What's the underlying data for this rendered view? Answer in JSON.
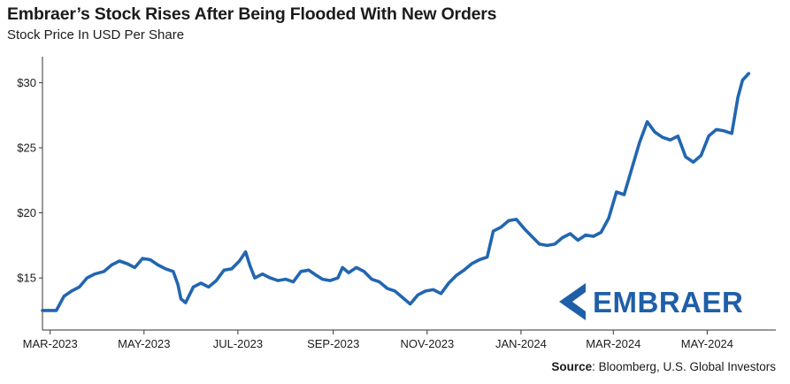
{
  "header": {
    "title": "Embraer’s Stock Rises After Being Flooded With New Orders",
    "subtitle": "Stock Price In USD Per Share"
  },
  "footer": {
    "source_label": "Source",
    "source_text": ": Bloomberg, U.S. Global Investors"
  },
  "logo": {
    "text": "EMBRAER",
    "icon": "embraer-chevron-icon",
    "color": "#1f5fa8"
  },
  "colors": {
    "line": "#2266b0",
    "axis": "#333333",
    "text": "#1b1b1b"
  },
  "chart_data": {
    "type": "line",
    "title": "Embraer’s Stock Rises After Being Flooded With New Orders",
    "subtitle": "Stock Price In USD Per Share",
    "xlabel": "",
    "ylabel": "",
    "ylim": [
      11,
      32
    ],
    "yticks": [
      15,
      20,
      25,
      30
    ],
    "ytick_labels": [
      "$15",
      "$20",
      "$25",
      "$30"
    ],
    "xlim": [
      "2023-02-24",
      "2024-06-06"
    ],
    "xticks": [
      "2023-03-01",
      "2023-05-01",
      "2023-07-01",
      "2023-09-01",
      "2023-11-01",
      "2024-01-01",
      "2024-03-01",
      "2024-05-01"
    ],
    "xtick_labels": [
      "MAR-2023",
      "MAY-2023",
      "JUL-2023",
      "SEP-2023",
      "NOV-2023",
      "JAN-2024",
      "MAR-2024",
      "MAY-2024"
    ],
    "grid": false,
    "legend": "none",
    "series": [
      {
        "points": [
          [
            "2023-02-24",
            12.5
          ],
          [
            "2023-03-01",
            12.5
          ],
          [
            "2023-03-05",
            12.5
          ],
          [
            "2023-03-10",
            13.6
          ],
          [
            "2023-03-15",
            14.0
          ],
          [
            "2023-03-20",
            14.3
          ],
          [
            "2023-03-25",
            15.0
          ],
          [
            "2023-03-30",
            15.3
          ],
          [
            "2023-04-05",
            15.5
          ],
          [
            "2023-04-10",
            16.0
          ],
          [
            "2023-04-15",
            16.3
          ],
          [
            "2023-04-20",
            16.1
          ],
          [
            "2023-04-25",
            15.8
          ],
          [
            "2023-04-30",
            16.5
          ],
          [
            "2023-05-05",
            16.4
          ],
          [
            "2023-05-10",
            16.0
          ],
          [
            "2023-05-15",
            15.7
          ],
          [
            "2023-05-20",
            15.5
          ],
          [
            "2023-05-23",
            14.5
          ],
          [
            "2023-05-25",
            13.4
          ],
          [
            "2023-05-28",
            13.1
          ],
          [
            "2023-06-02",
            14.3
          ],
          [
            "2023-06-07",
            14.6
          ],
          [
            "2023-06-12",
            14.3
          ],
          [
            "2023-06-17",
            14.8
          ],
          [
            "2023-06-22",
            15.6
          ],
          [
            "2023-06-27",
            15.7
          ],
          [
            "2023-07-02",
            16.3
          ],
          [
            "2023-07-06",
            17.0
          ],
          [
            "2023-07-09",
            15.9
          ],
          [
            "2023-07-12",
            15.0
          ],
          [
            "2023-07-17",
            15.3
          ],
          [
            "2023-07-22",
            15.0
          ],
          [
            "2023-07-27",
            14.8
          ],
          [
            "2023-08-01",
            14.9
          ],
          [
            "2023-08-06",
            14.7
          ],
          [
            "2023-08-11",
            15.5
          ],
          [
            "2023-08-16",
            15.6
          ],
          [
            "2023-08-21",
            15.2
          ],
          [
            "2023-08-25",
            14.9
          ],
          [
            "2023-08-30",
            14.8
          ],
          [
            "2023-09-04",
            15.0
          ],
          [
            "2023-09-07",
            15.8
          ],
          [
            "2023-09-11",
            15.4
          ],
          [
            "2023-09-16",
            15.8
          ],
          [
            "2023-09-21",
            15.5
          ],
          [
            "2023-09-26",
            14.9
          ],
          [
            "2023-10-01",
            14.7
          ],
          [
            "2023-10-06",
            14.2
          ],
          [
            "2023-10-11",
            14.0
          ],
          [
            "2023-10-16",
            13.5
          ],
          [
            "2023-10-21",
            13.0
          ],
          [
            "2023-10-26",
            13.7
          ],
          [
            "2023-10-31",
            14.0
          ],
          [
            "2023-11-05",
            14.1
          ],
          [
            "2023-11-10",
            13.8
          ],
          [
            "2023-11-15",
            14.6
          ],
          [
            "2023-11-20",
            15.2
          ],
          [
            "2023-11-25",
            15.6
          ],
          [
            "2023-11-30",
            16.1
          ],
          [
            "2023-12-05",
            16.4
          ],
          [
            "2023-12-10",
            16.6
          ],
          [
            "2023-12-14",
            18.6
          ],
          [
            "2023-12-19",
            18.9
          ],
          [
            "2023-12-24",
            19.4
          ],
          [
            "2023-12-29",
            19.5
          ],
          [
            "2024-01-03",
            18.8
          ],
          [
            "2024-01-08",
            18.2
          ],
          [
            "2024-01-13",
            17.6
          ],
          [
            "2024-01-18",
            17.5
          ],
          [
            "2024-01-23",
            17.6
          ],
          [
            "2024-01-28",
            18.1
          ],
          [
            "2024-02-02",
            18.4
          ],
          [
            "2024-02-07",
            17.9
          ],
          [
            "2024-02-12",
            18.3
          ],
          [
            "2024-02-17",
            18.2
          ],
          [
            "2024-02-22",
            18.5
          ],
          [
            "2024-02-27",
            19.6
          ],
          [
            "2024-03-03",
            21.6
          ],
          [
            "2024-03-08",
            21.4
          ],
          [
            "2024-03-13",
            23.4
          ],
          [
            "2024-03-18",
            25.4
          ],
          [
            "2024-03-23",
            27.0
          ],
          [
            "2024-03-28",
            26.2
          ],
          [
            "2024-04-02",
            25.8
          ],
          [
            "2024-04-07",
            25.6
          ],
          [
            "2024-04-12",
            25.9
          ],
          [
            "2024-04-17",
            24.3
          ],
          [
            "2024-04-22",
            23.9
          ],
          [
            "2024-04-27",
            24.4
          ],
          [
            "2024-05-02",
            25.9
          ],
          [
            "2024-05-07",
            26.4
          ],
          [
            "2024-05-12",
            26.3
          ],
          [
            "2024-05-17",
            26.1
          ],
          [
            "2024-05-21",
            28.9
          ],
          [
            "2024-05-24",
            30.2
          ],
          [
            "2024-05-28",
            30.7
          ]
        ]
      }
    ]
  }
}
